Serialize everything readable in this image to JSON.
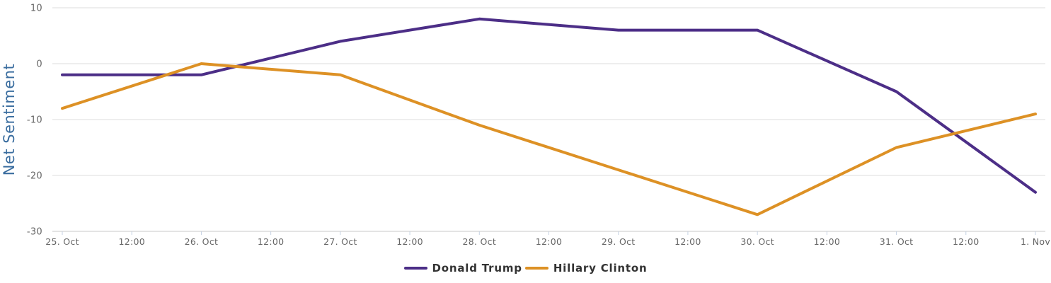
{
  "chart_data": {
    "type": "line",
    "title": "",
    "xlabel": "",
    "ylabel": "Net Sentiment",
    "categories": [
      "25. Oct",
      "26. Oct",
      "27. Oct",
      "28. Oct",
      "29. Oct",
      "30. Oct",
      "31. Oct",
      "1. Nov"
    ],
    "x_tick_labels": [
      "25. Oct",
      "12:00",
      "26. Oct",
      "12:00",
      "27. Oct",
      "12:00",
      "28. Oct",
      "12:00",
      "29. Oct",
      "12:00",
      "30. Oct",
      "12:00",
      "31. Oct",
      "12:00",
      "1. Nov"
    ],
    "series": [
      {
        "name": "Donald Trump",
        "color": "#4C2E87",
        "values": [
          -2,
          -2,
          4,
          8,
          6,
          6,
          -5,
          -23
        ]
      },
      {
        "name": "Hillary Clinton",
        "color": "#DD9125",
        "values": [
          -8,
          0,
          -2,
          -11,
          -19,
          -27,
          -15,
          -9
        ]
      }
    ],
    "ylim": [
      -30,
      10
    ],
    "y_ticks": [
      10,
      0,
      -10,
      -20,
      -30
    ],
    "grid": true,
    "legend_position": "bottom",
    "styles": {
      "ylabel_color": "#3A6D9F",
      "tick_label_color": "#666666",
      "grid_color": "#DEDEDE",
      "axis_line_color": "#C8C8C8",
      "tick_mark_color": "#C6D2E3",
      "legend_text_color": "#333333"
    }
  }
}
